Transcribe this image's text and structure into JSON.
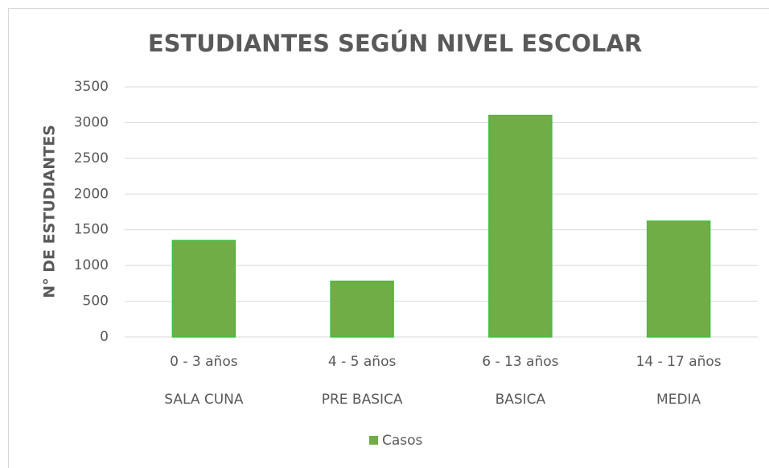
{
  "chart_data": {
    "type": "bar",
    "title": "ESTUDIANTES SEGÚN NIVEL ESCOLAR",
    "y_label": "N° DE ESTUDIANTES",
    "categories": [
      "0 - 3 años",
      "4 - 5 años",
      "6 - 13 años",
      "14 - 17 años"
    ],
    "category_groups": [
      "SALA CUNA",
      "PRE BASICA",
      "BASICA",
      "MEDIA"
    ],
    "series": [
      {
        "name": "Casos",
        "color": "#70ad47",
        "values": [
          1350,
          780,
          3100,
          1620
        ]
      }
    ],
    "ylim": [
      0,
      3500
    ],
    "yticks": [
      0,
      500,
      1000,
      1500,
      2000,
      2500,
      3000,
      3500
    ],
    "grid": true,
    "legend": "bottom"
  }
}
